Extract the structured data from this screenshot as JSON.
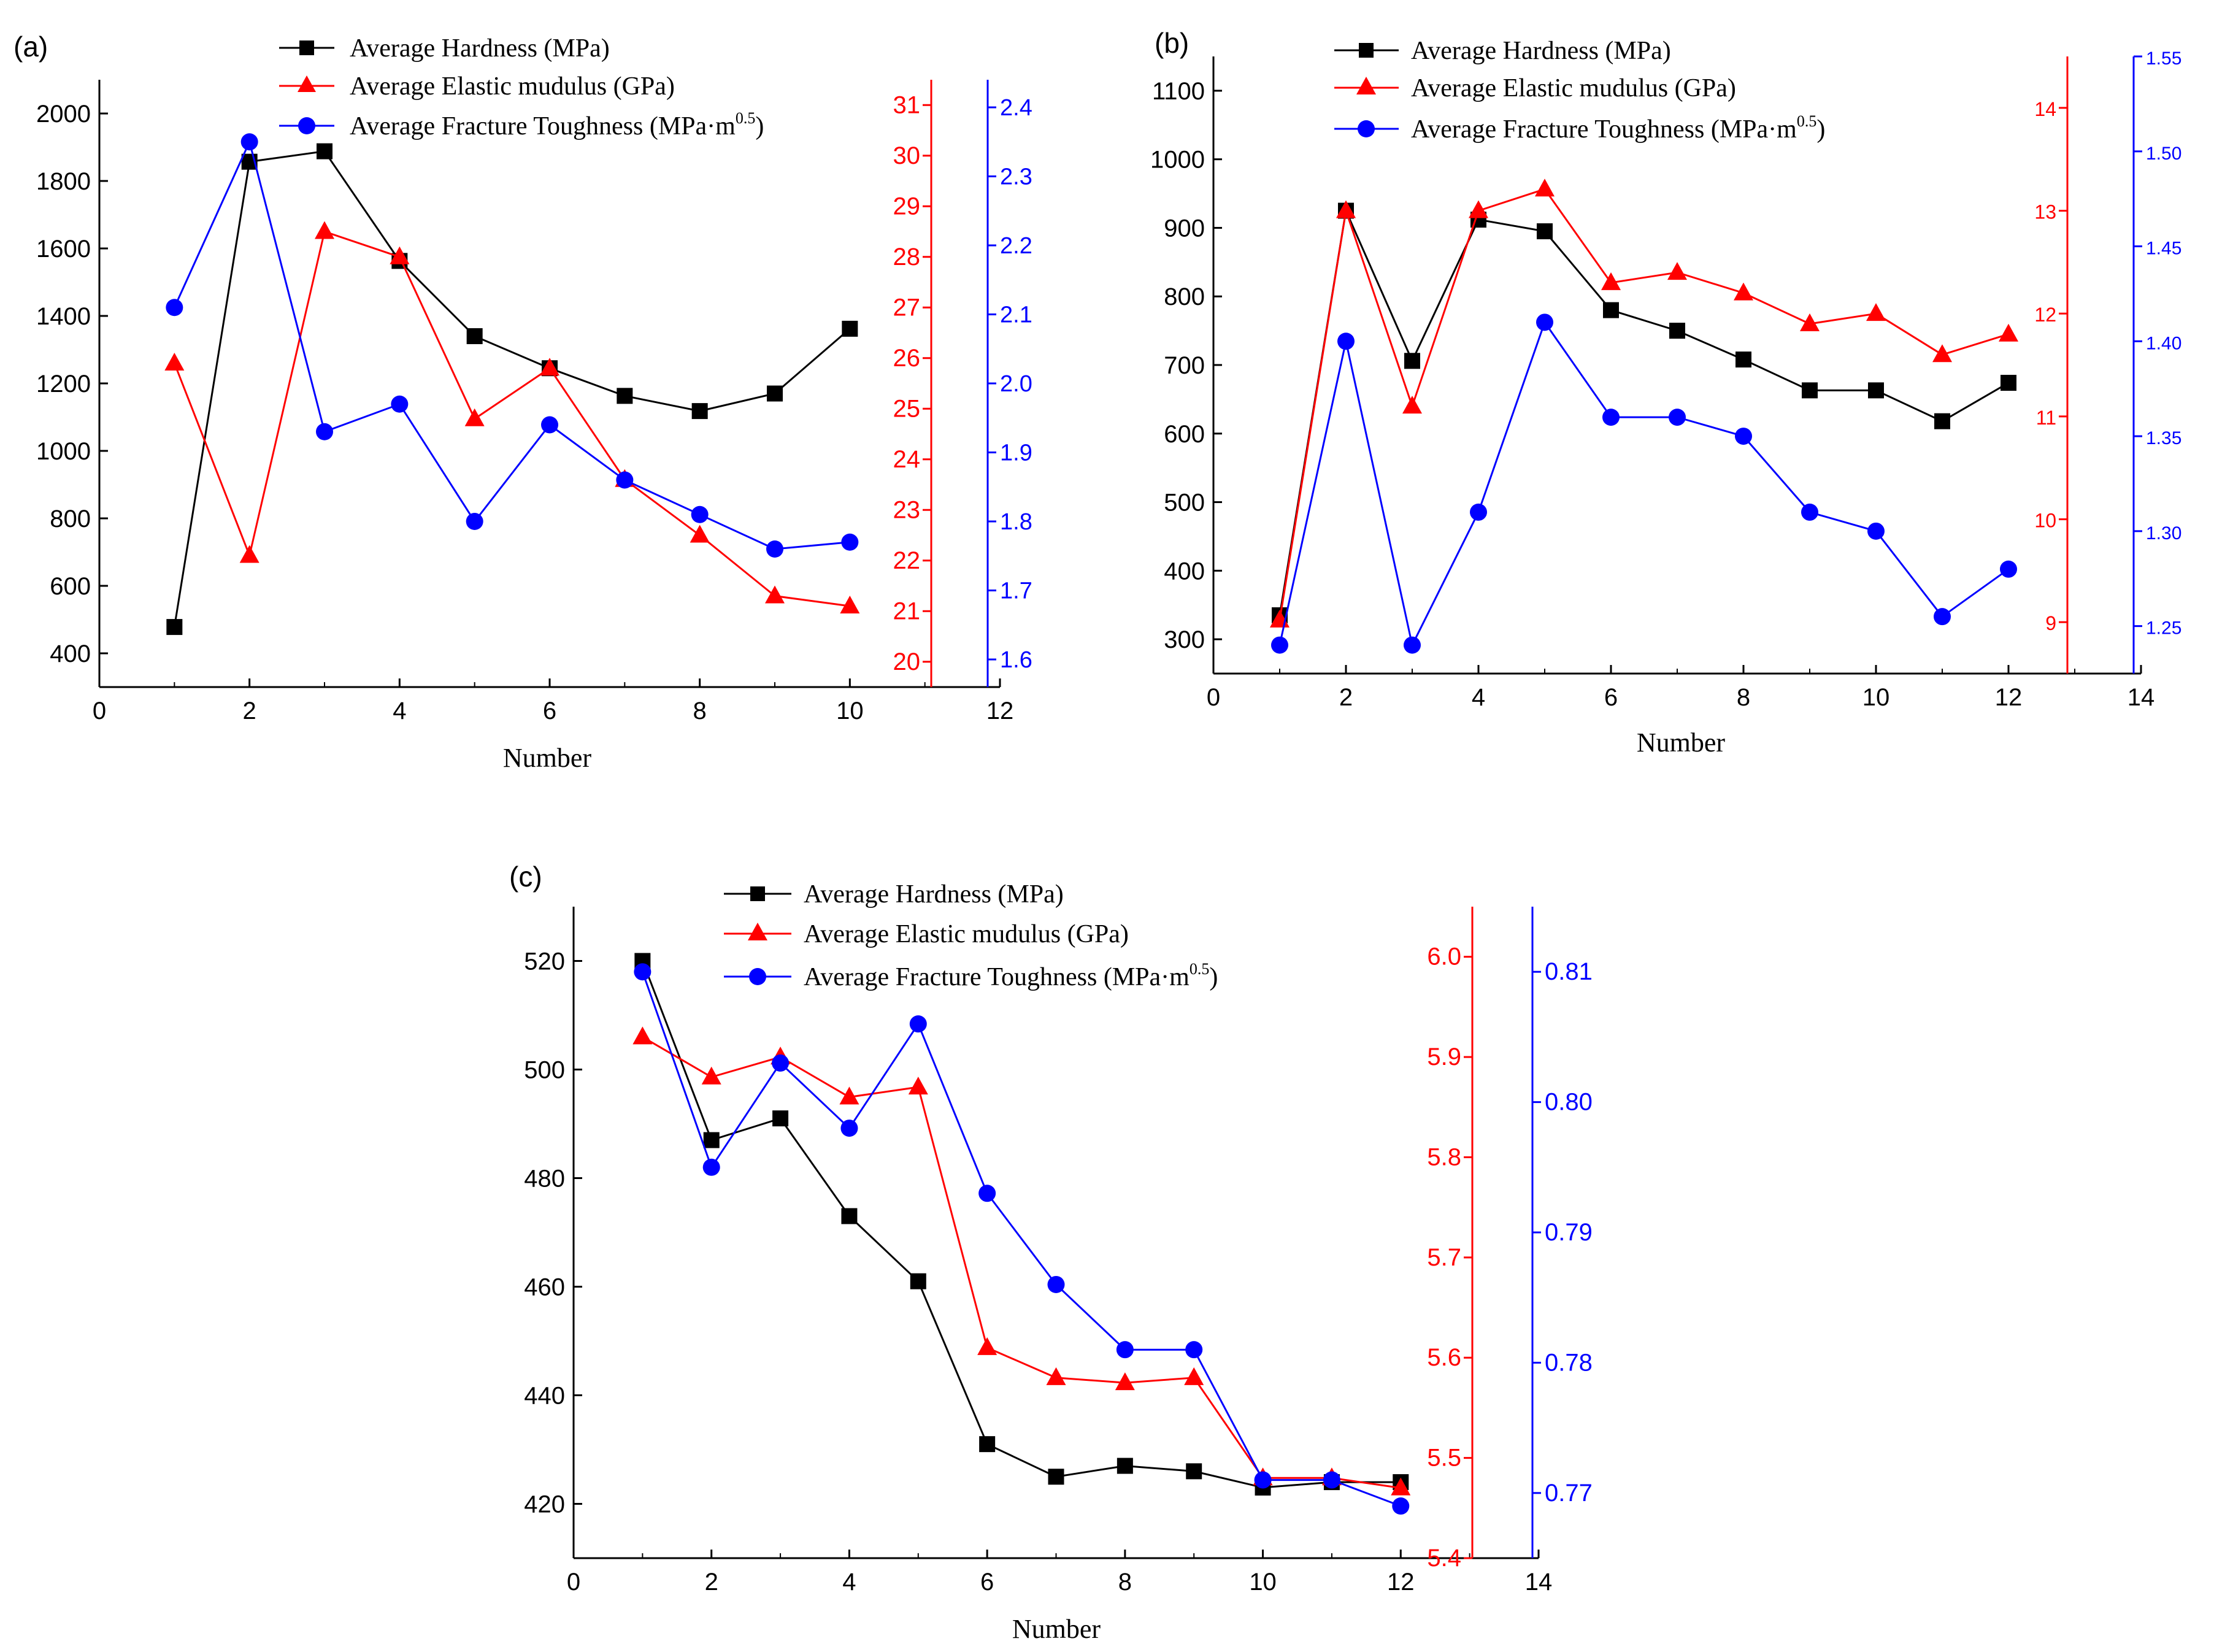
{
  "colors": {
    "hardness": "#000000",
    "modulus": "#ff0000",
    "toughness": "#0000ff",
    "axis": "#000000"
  },
  "chart_data": [
    {
      "panel_label": "(a)",
      "type": "line",
      "legend": {
        "hardness": "Average Hardness (MPa)",
        "modulus": "Average Elastic mudulus (GPa)",
        "toughness_prefix": "Average Fracture Toughness (MPa·m",
        "toughness_exp": "0.5",
        "toughness_suffix": ")"
      },
      "xlabel": "Number",
      "xlim": [
        0,
        12
      ],
      "xticks": [
        "0",
        "2",
        "4",
        "6",
        "8",
        "10",
        "12"
      ],
      "series": [
        {
          "name": "Average Hardness (MPa)",
          "axis": "left",
          "x": [
            1,
            2,
            3,
            4,
            5,
            6,
            7,
            8,
            9,
            10
          ],
          "values": [
            478,
            1857,
            1888,
            1563,
            1340,
            1245,
            1163,
            1118,
            1170,
            1362
          ]
        },
        {
          "name": "Average Elastic mudulus (GPa)",
          "axis": "right1",
          "x": [
            1,
            2,
            3,
            4,
            5,
            6,
            7,
            8,
            9,
            10
          ],
          "values": [
            25.9,
            22.1,
            28.5,
            28.0,
            24.8,
            25.8,
            23.6,
            22.5,
            21.3,
            21.1
          ]
        },
        {
          "name": "Average Fracture Toughness (MPa·m0.5)",
          "axis": "right2",
          "x": [
            1,
            2,
            3,
            4,
            5,
            6,
            7,
            8,
            9,
            10
          ],
          "values": [
            2.11,
            2.35,
            1.93,
            1.97,
            1.8,
            1.94,
            1.86,
            1.81,
            1.76,
            1.77
          ]
        }
      ],
      "y_left": {
        "min": 300,
        "max": 2100,
        "ticks": [
          "400",
          "600",
          "800",
          "1000",
          "1200",
          "1400",
          "1600",
          "1800",
          "2000"
        ]
      },
      "y_right1": {
        "min": 19.5,
        "max": 31.5,
        "ticks": [
          "20",
          "21",
          "22",
          "23",
          "24",
          "25",
          "26",
          "27",
          "28",
          "29",
          "30",
          "31"
        ]
      },
      "y_right2": {
        "min": 1.56,
        "max": 2.44,
        "ticks": [
          "1.6",
          "1.7",
          "1.8",
          "1.9",
          "2.0",
          "2.1",
          "2.2",
          "2.3",
          "2.4"
        ]
      }
    },
    {
      "panel_label": "(b)",
      "type": "line",
      "legend": {
        "hardness": "Average Hardness (MPa)",
        "modulus": "Average Elastic mudulus (GPa)",
        "toughness_prefix": "Average Fracture Toughness (MPa·m",
        "toughness_exp": "0.5",
        "toughness_suffix": ")"
      },
      "xlabel": "Number",
      "xlim": [
        0,
        14
      ],
      "xticks": [
        "0",
        "2",
        "4",
        "6",
        "8",
        "10",
        "12",
        "14"
      ],
      "series": [
        {
          "name": "Average Hardness (MPa)",
          "axis": "left",
          "x": [
            1,
            2,
            3,
            4,
            5,
            6,
            7,
            8,
            9,
            10,
            11,
            12
          ],
          "values": [
            335,
            925,
            706,
            912,
            895,
            780,
            750,
            708,
            663,
            663,
            618,
            674
          ]
        },
        {
          "name": "Average Elastic mudulus (GPa)",
          "axis": "right1",
          "x": [
            1,
            2,
            3,
            4,
            5,
            6,
            7,
            8,
            9,
            10,
            11,
            12
          ],
          "values": [
            9.02,
            13.0,
            11.1,
            13.0,
            13.21,
            12.3,
            12.4,
            12.2,
            11.9,
            12.0,
            11.6,
            11.8
          ]
        },
        {
          "name": "Average Fracture Toughness (MPa·m0.5)",
          "axis": "right2",
          "x": [
            1,
            2,
            3,
            4,
            5,
            6,
            7,
            8,
            9,
            10,
            11,
            12
          ],
          "values": [
            1.24,
            1.4,
            1.24,
            1.31,
            1.41,
            1.36,
            1.36,
            1.35,
            1.31,
            1.3,
            1.255,
            1.28
          ]
        }
      ],
      "y_left": {
        "min": 250,
        "max": 1150,
        "ticks": [
          "300",
          "400",
          "500",
          "600",
          "700",
          "800",
          "900",
          "1000",
          "1100"
        ]
      },
      "y_right1": {
        "min": 8.5,
        "max": 14.5,
        "ticks": [
          "9",
          "10",
          "11",
          "12",
          "13",
          "14"
        ]
      },
      "y_right2": {
        "min": 1.225,
        "max": 1.55,
        "ticks": [
          "1.25",
          "1.30",
          "1.35",
          "1.40",
          "1.45",
          "1.50",
          "1.55"
        ]
      }
    },
    {
      "panel_label": "(c)",
      "type": "line",
      "legend": {
        "hardness": "Average Hardness (MPa)",
        "modulus": "Average Elastic mudulus (GPa)",
        "toughness_prefix": "Average Fracture Toughness (MPa·m",
        "toughness_exp": "0.5",
        "toughness_suffix": ")"
      },
      "xlabel": "Number",
      "xlim": [
        0,
        14
      ],
      "xticks": [
        "0",
        "2",
        "4",
        "6",
        "8",
        "10",
        "12",
        "14"
      ],
      "series": [
        {
          "name": "Average Hardness (MPa)",
          "axis": "left",
          "x": [
            1,
            2,
            3,
            4,
            5,
            6,
            7,
            8,
            9,
            10,
            11,
            12
          ],
          "values": [
            520,
            487,
            491,
            473,
            461,
            431,
            425,
            427,
            426,
            423,
            424,
            424
          ]
        },
        {
          "name": "Average Elastic mudulus (GPa)",
          "axis": "right1",
          "x": [
            1,
            2,
            3,
            4,
            5,
            6,
            7,
            8,
            9,
            10,
            11,
            12
          ],
          "values": [
            5.92,
            5.88,
            5.9,
            5.86,
            5.87,
            5.61,
            5.58,
            5.575,
            5.58,
            5.48,
            5.48,
            5.47
          ]
        },
        {
          "name": "Average Fracture Toughness (MPa·m0.5)",
          "axis": "right2",
          "x": [
            1,
            2,
            3,
            4,
            5,
            6,
            7,
            8,
            9,
            10,
            11,
            12
          ],
          "values": [
            0.81,
            0.795,
            0.803,
            0.798,
            0.806,
            0.793,
            0.786,
            0.781,
            0.781,
            0.771,
            0.771,
            0.769
          ]
        }
      ],
      "y_left": {
        "min": 410,
        "max": 530,
        "ticks": [
          "420",
          "440",
          "460",
          "480",
          "500",
          "520"
        ]
      },
      "y_right1": {
        "min": 5.4,
        "max": 6.05,
        "ticks": [
          "5.4",
          "5.5",
          "5.6",
          "5.7",
          "5.8",
          "5.9",
          "6.0"
        ]
      },
      "y_right2": {
        "min": 0.765,
        "max": 0.815,
        "ticks": [
          "0.77",
          "0.78",
          "0.79",
          "0.80",
          "0.81"
        ]
      }
    }
  ]
}
